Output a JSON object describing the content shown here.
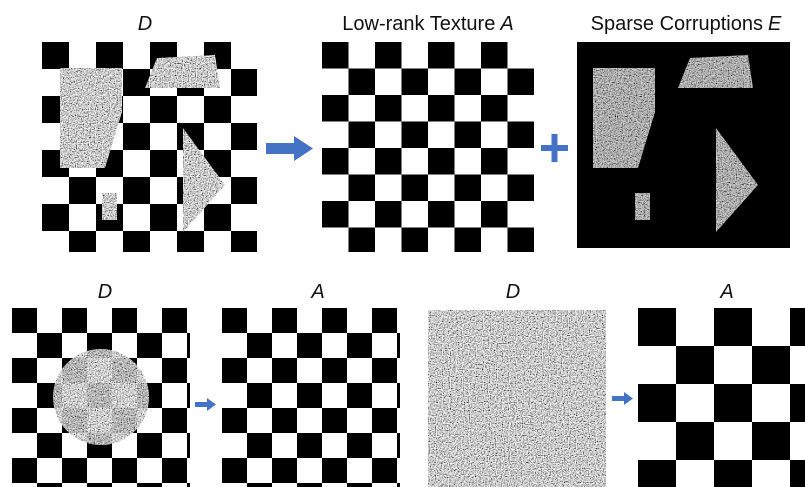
{
  "top_row": [
    {
      "title": {
        "symbol": "D"
      }
    },
    {
      "title": {
        "text": "Low-rank Texture",
        "symbol": "A"
      }
    },
    {
      "title": {
        "text": "Sparse Corruptions",
        "symbol": "E"
      }
    }
  ],
  "bottom_row": [
    {
      "title": {
        "symbol": "D"
      }
    },
    {
      "title": {
        "symbol": "A"
      }
    },
    {
      "title": {
        "symbol": "D"
      }
    },
    {
      "title": {
        "symbol": "A"
      }
    }
  ]
}
